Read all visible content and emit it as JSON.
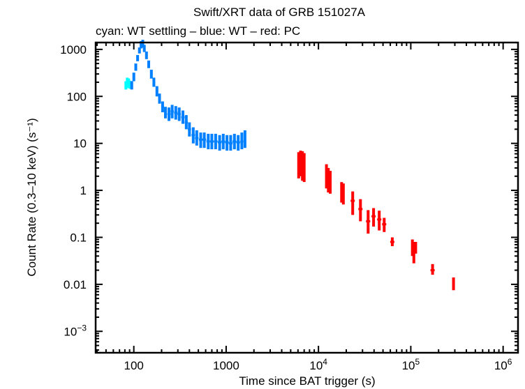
{
  "chart_data": {
    "type": "scatter",
    "title": "Swift/XRT data of GRB 151027A",
    "subtitle": "cyan: WT settling – blue: WT – red: PC",
    "xlabel": "Time since BAT trigger (s)",
    "ylabel": "Count Rate (0.3–10 keV) (s⁻¹)",
    "xscale": "log",
    "yscale": "log",
    "xlim": [
      38.6,
      1450000
    ],
    "ylim": [
      0.00035,
      1400
    ],
    "grid": false,
    "legend": "subtitle",
    "x_ticks": [
      {
        "value": 100,
        "label": "100",
        "sup": ""
      },
      {
        "value": 1000,
        "label": "1000",
        "sup": ""
      },
      {
        "value": 10000,
        "label": "10",
        "sup": "4"
      },
      {
        "value": 100000,
        "label": "10",
        "sup": "5"
      },
      {
        "value": 1000000,
        "label": "10",
        "sup": "6"
      }
    ],
    "y_ticks": [
      {
        "value": 1000,
        "label": "1000",
        "sup": ""
      },
      {
        "value": 100,
        "label": "100",
        "sup": ""
      },
      {
        "value": 10,
        "label": "10",
        "sup": ""
      },
      {
        "value": 1,
        "label": "1",
        "sup": ""
      },
      {
        "value": 0.1,
        "label": "0.1",
        "sup": ""
      },
      {
        "value": 0.01,
        "label": "0.01",
        "sup": ""
      },
      {
        "value": 0.001,
        "label": "10",
        "sup": "−3"
      }
    ],
    "series": [
      {
        "name": "WT settling",
        "color": "#00ffff",
        "points": [
          {
            "x": 82,
            "y": 170,
            "lo": 140,
            "hi": 210
          },
          {
            "x": 85,
            "y": 200,
            "lo": 160,
            "hi": 250
          },
          {
            "x": 88,
            "y": 190,
            "lo": 150,
            "hi": 240
          },
          {
            "x": 91,
            "y": 175,
            "lo": 145,
            "hi": 215
          }
        ]
      },
      {
        "name": "WT",
        "color": "#0080ff",
        "points": [
          {
            "x": 95,
            "y": 170,
            "lo": 140,
            "hi": 210
          },
          {
            "x": 100,
            "y": 260,
            "lo": 210,
            "hi": 320
          },
          {
            "x": 105,
            "y": 420,
            "lo": 350,
            "hi": 500
          },
          {
            "x": 110,
            "y": 650,
            "lo": 560,
            "hi": 760
          },
          {
            "x": 115,
            "y": 950,
            "lo": 820,
            "hi": 1100
          },
          {
            "x": 120,
            "y": 1250,
            "lo": 1050,
            "hi": 1500
          },
          {
            "x": 125,
            "y": 1300,
            "lo": 1100,
            "hi": 1600
          },
          {
            "x": 130,
            "y": 1050,
            "lo": 880,
            "hi": 1250
          },
          {
            "x": 137,
            "y": 750,
            "lo": 620,
            "hi": 900
          },
          {
            "x": 145,
            "y": 480,
            "lo": 400,
            "hi": 580
          },
          {
            "x": 155,
            "y": 300,
            "lo": 240,
            "hi": 370
          },
          {
            "x": 165,
            "y": 200,
            "lo": 160,
            "hi": 250
          },
          {
            "x": 178,
            "y": 130,
            "lo": 100,
            "hi": 165
          },
          {
            "x": 190,
            "y": 90,
            "lo": 70,
            "hi": 115
          },
          {
            "x": 205,
            "y": 60,
            "lo": 46,
            "hi": 78
          },
          {
            "x": 220,
            "y": 45,
            "lo": 34,
            "hi": 60
          },
          {
            "x": 240,
            "y": 42,
            "lo": 30,
            "hi": 58
          },
          {
            "x": 260,
            "y": 48,
            "lo": 34,
            "hi": 66
          },
          {
            "x": 285,
            "y": 45,
            "lo": 32,
            "hi": 62
          },
          {
            "x": 310,
            "y": 42,
            "lo": 30,
            "hi": 58
          },
          {
            "x": 340,
            "y": 36,
            "lo": 26,
            "hi": 50
          },
          {
            "x": 370,
            "y": 28,
            "lo": 20,
            "hi": 40
          },
          {
            "x": 400,
            "y": 20,
            "lo": 14,
            "hi": 28
          },
          {
            "x": 440,
            "y": 15,
            "lo": 10,
            "hi": 22
          },
          {
            "x": 480,
            "y": 13,
            "lo": 9,
            "hi": 19
          },
          {
            "x": 530,
            "y": 12,
            "lo": 8,
            "hi": 17
          },
          {
            "x": 580,
            "y": 12,
            "lo": 8,
            "hi": 17
          },
          {
            "x": 640,
            "y": 11,
            "lo": 7.5,
            "hi": 16
          },
          {
            "x": 700,
            "y": 11,
            "lo": 7.5,
            "hi": 16
          },
          {
            "x": 770,
            "y": 11,
            "lo": 7.5,
            "hi": 16
          },
          {
            "x": 850,
            "y": 10.5,
            "lo": 7,
            "hi": 15
          },
          {
            "x": 930,
            "y": 11,
            "lo": 7.5,
            "hi": 16
          },
          {
            "x": 1020,
            "y": 10.5,
            "lo": 7,
            "hi": 15
          },
          {
            "x": 1120,
            "y": 10,
            "lo": 7,
            "hi": 15
          },
          {
            "x": 1230,
            "y": 11,
            "lo": 7.5,
            "hi": 16
          },
          {
            "x": 1350,
            "y": 10.5,
            "lo": 7,
            "hi": 15
          },
          {
            "x": 1480,
            "y": 11,
            "lo": 7.5,
            "hi": 17
          },
          {
            "x": 1600,
            "y": 12,
            "lo": 8,
            "hi": 19
          }
        ]
      },
      {
        "name": "PC",
        "color": "#ff0000",
        "points": [
          {
            "x": 6100,
            "y": 3.5,
            "lo": 1.8,
            "hi": 6.5
          },
          {
            "x": 6400,
            "y": 4.0,
            "lo": 2.0,
            "hi": 7.0
          },
          {
            "x": 6700,
            "y": 3.6,
            "lo": 1.6,
            "hi": 6.8
          },
          {
            "x": 7000,
            "y": 3.2,
            "lo": 1.5,
            "hi": 6.2
          },
          {
            "x": 12200,
            "y": 2.2,
            "lo": 1.1,
            "hi": 3.6
          },
          {
            "x": 12800,
            "y": 1.8,
            "lo": 0.9,
            "hi": 3.0
          },
          {
            "x": 13400,
            "y": 1.6,
            "lo": 0.85,
            "hi": 2.6
          },
          {
            "x": 17800,
            "y": 1.0,
            "lo": 0.55,
            "hi": 1.5
          },
          {
            "x": 18600,
            "y": 0.95,
            "lo": 0.5,
            "hi": 1.4
          },
          {
            "x": 23500,
            "y": 0.6,
            "lo": 0.3,
            "hi": 0.95
          },
          {
            "x": 28500,
            "y": 0.4,
            "lo": 0.22,
            "hi": 0.65
          },
          {
            "x": 34500,
            "y": 0.22,
            "lo": 0.12,
            "hi": 0.38
          },
          {
            "x": 39500,
            "y": 0.28,
            "lo": 0.17,
            "hi": 0.42
          },
          {
            "x": 45500,
            "y": 0.24,
            "lo": 0.14,
            "hi": 0.37
          },
          {
            "x": 51500,
            "y": 0.19,
            "lo": 0.13,
            "hi": 0.26
          },
          {
            "x": 63000,
            "y": 0.08,
            "lo": 0.065,
            "hi": 0.1
          },
          {
            "x": 104000,
            "y": 0.055,
            "lo": 0.04,
            "hi": 0.09
          },
          {
            "x": 108000,
            "y": 0.045,
            "lo": 0.028,
            "hi": 0.08
          },
          {
            "x": 113000,
            "y": 0.06,
            "lo": 0.045,
            "hi": 0.08
          },
          {
            "x": 172000,
            "y": 0.02,
            "lo": 0.016,
            "hi": 0.027
          },
          {
            "x": 290000,
            "y": 0.01,
            "lo": 0.0075,
            "hi": 0.014
          }
        ]
      }
    ]
  }
}
